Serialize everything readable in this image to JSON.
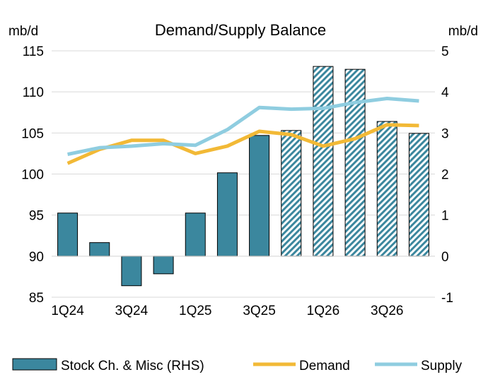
{
  "chart_data": {
    "type": "bar+line",
    "title": "Demand/Supply Balance",
    "ylabel_left": "mb/d",
    "ylabel_right": "mb/d",
    "ylim_left": [
      85,
      115
    ],
    "yticks_left": [
      85,
      90,
      95,
      100,
      105,
      110,
      115
    ],
    "ylim_right": [
      -1,
      5
    ],
    "yticks_right": [
      -1,
      0,
      1,
      2,
      3,
      4,
      5
    ],
    "categories": [
      "1Q24",
      "2Q24",
      "3Q24",
      "4Q24",
      "1Q25",
      "2Q25",
      "3Q25",
      "4Q25",
      "1Q26",
      "2Q26",
      "3Q26",
      "4Q26"
    ],
    "xtick_labels": [
      "1Q24",
      "",
      "3Q24",
      "",
      "1Q25",
      "",
      "3Q25",
      "",
      "1Q26",
      "",
      "3Q26",
      ""
    ],
    "grid": true,
    "legend_position": "bottom",
    "forecast_start_index": 7,
    "series": [
      {
        "name": "Stock Ch. & Misc (RHS)",
        "type": "bar",
        "axis": "right",
        "color": "#3b879e",
        "values": [
          1.05,
          0.33,
          -0.72,
          -0.43,
          1.05,
          2.03,
          2.94,
          3.06,
          4.62,
          4.55,
          3.28,
          2.99
        ]
      },
      {
        "name": "Demand",
        "type": "line",
        "axis": "left",
        "color": "#f2b936",
        "values": [
          101.3,
          103.0,
          104.1,
          104.1,
          102.5,
          103.4,
          105.2,
          104.8,
          103.4,
          104.3,
          106.0,
          105.9
        ]
      },
      {
        "name": "Supply",
        "type": "line",
        "axis": "left",
        "color": "#8fcde0",
        "values": [
          102.4,
          103.2,
          103.4,
          103.7,
          103.5,
          105.4,
          108.1,
          107.9,
          108.0,
          108.7,
          109.2,
          108.9
        ]
      }
    ]
  }
}
